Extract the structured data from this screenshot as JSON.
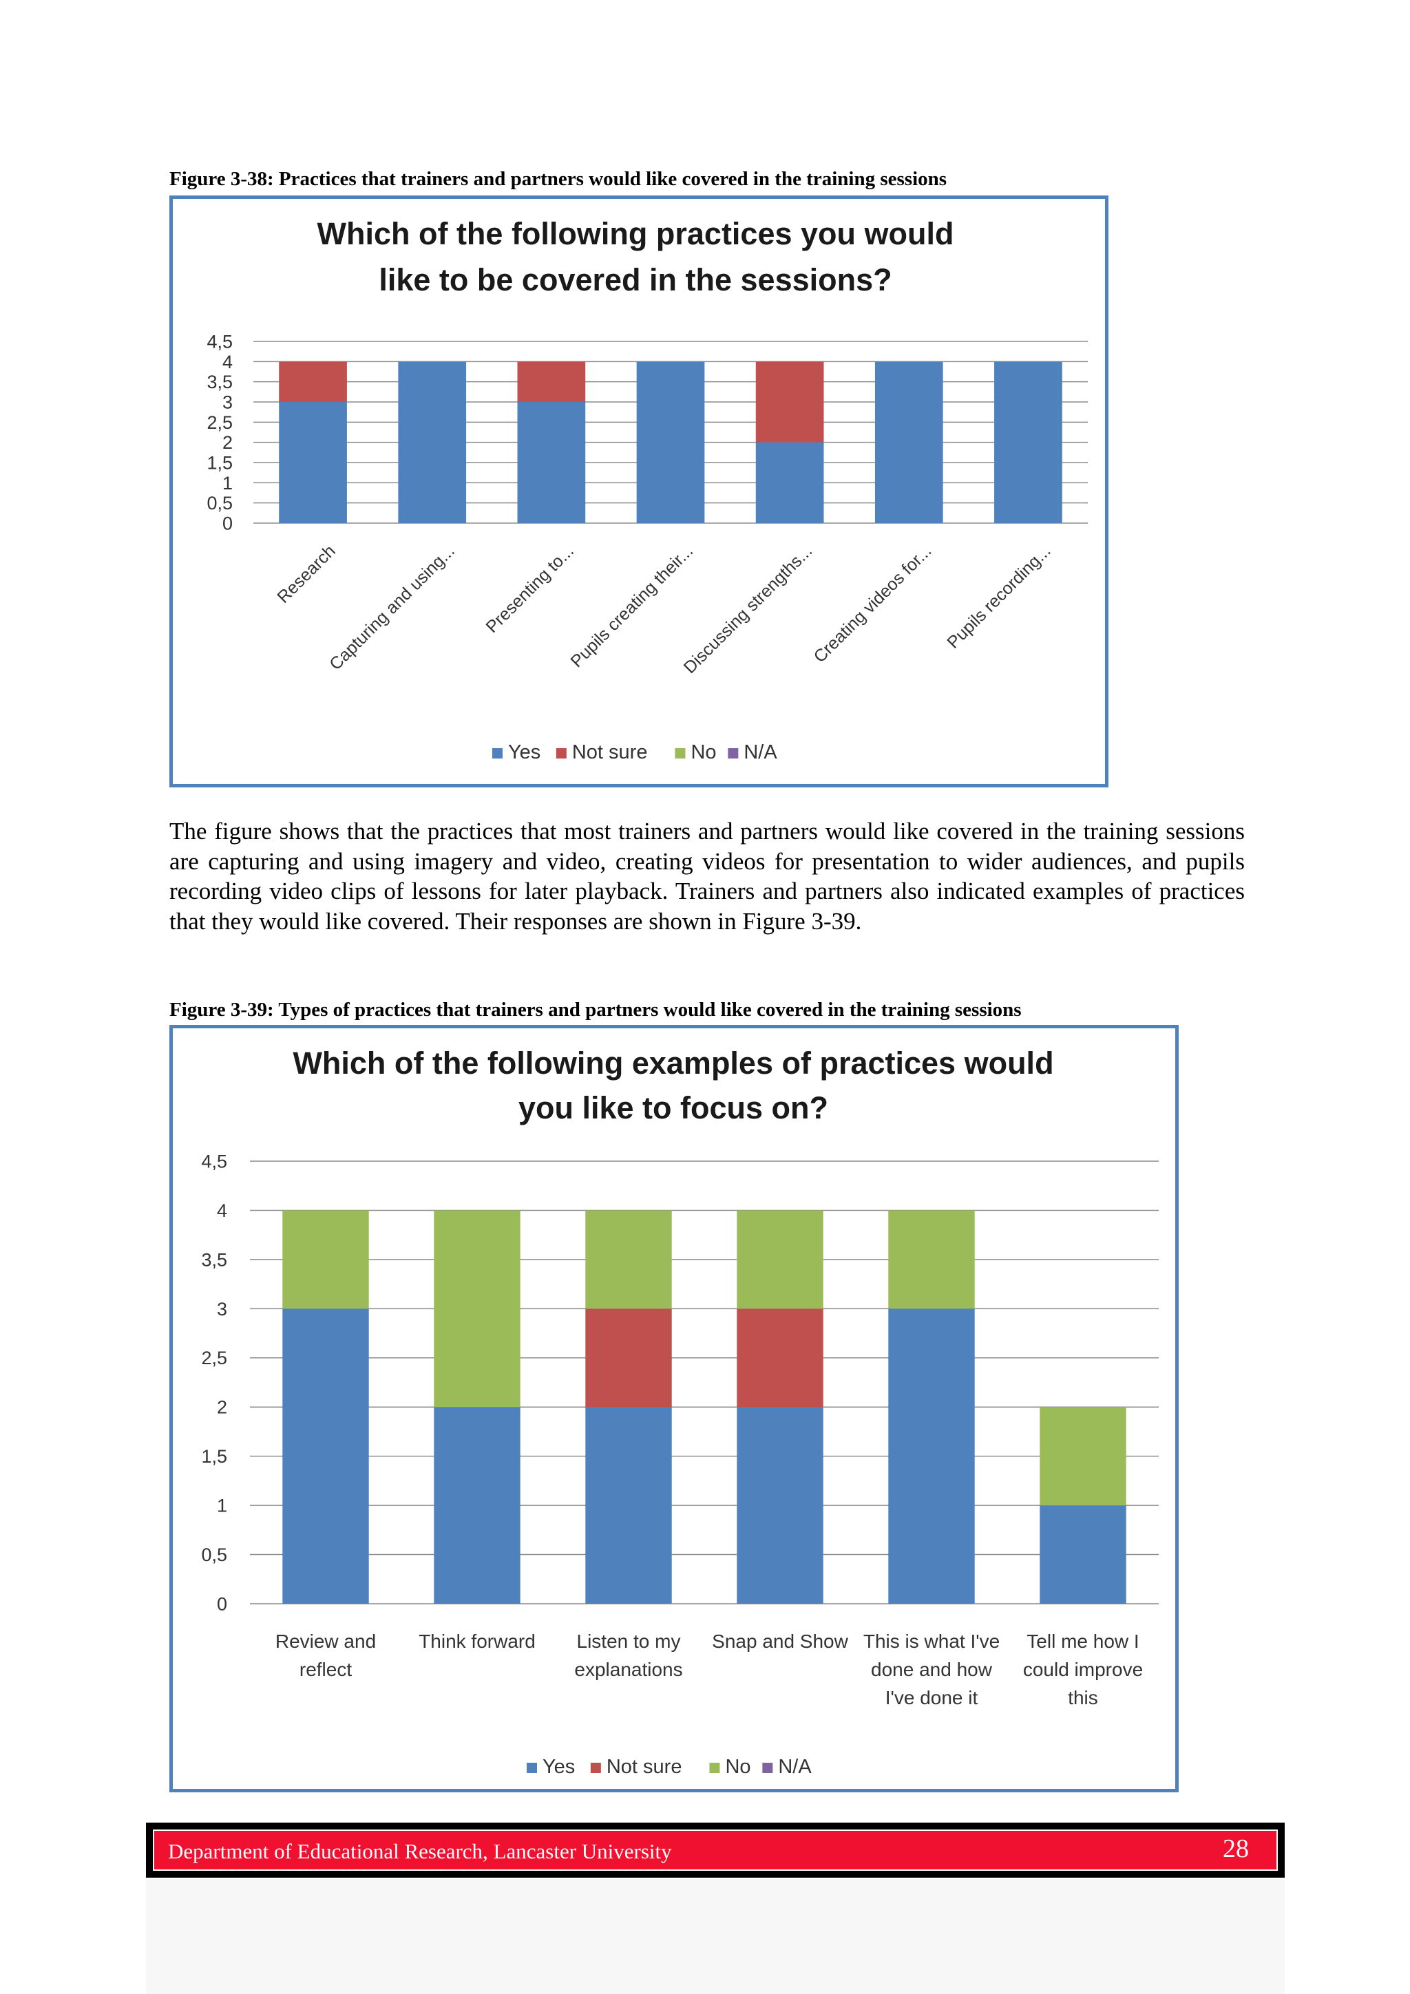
{
  "figures": [
    {
      "caption": "Figure 3-38: Practices that trainers and partners would like covered in the training sessions",
      "chart_data": {
        "type": "bar",
        "stacked": true,
        "title_lines": [
          "Which of the following practices you would",
          "like to be covered in the sessions?"
        ],
        "categories": [
          "Research",
          "Capturing and using...",
          "Presenting to...",
          "Pupils creating their...",
          "Discussing strengths...",
          "Creating videos for...",
          "Pupils recording..."
        ],
        "series": [
          {
            "name": "Yes",
            "color": "#4f81bd",
            "values": [
              3,
              4,
              3,
              4,
              2,
              4,
              4
            ]
          },
          {
            "name": "Not sure",
            "color": "#c0504d",
            "values": [
              1,
              0,
              1,
              0,
              2,
              0,
              0
            ]
          },
          {
            "name": "No",
            "color": "#9bbb59",
            "values": [
              0,
              0,
              0,
              0,
              0,
              0,
              0
            ]
          },
          {
            "name": "N/A",
            "color": "#8064a2",
            "values": [
              0,
              0,
              0,
              0,
              0,
              0,
              0
            ]
          }
        ],
        "ylim": [
          0,
          4.5
        ],
        "y_ticks": [
          "0",
          "0,5",
          "1",
          "1,5",
          "2",
          "2,5",
          "3",
          "3,5",
          "4",
          "4,5"
        ],
        "category_labels_rotated": true,
        "grid": true,
        "legend": "bottom"
      }
    },
    {
      "caption": "Figure 3-39: Types of practices that trainers and partners would like covered in the training sessions",
      "chart_data": {
        "type": "bar",
        "stacked": true,
        "title_lines": [
          "Which of the following examples of practices would",
          "you like to focus on?"
        ],
        "categories": [
          "Review and reflect",
          "Think forward",
          "Listen to my explanations",
          "Snap and Show",
          "This is what I've done and how I've done it",
          "Tell me how I could improve this"
        ],
        "category_label_lines": [
          [
            "Review and",
            "reflect"
          ],
          [
            "Think forward"
          ],
          [
            "Listen to my",
            "explanations"
          ],
          [
            "Snap and Show"
          ],
          [
            "This is what I've",
            "done and how",
            "I've done it"
          ],
          [
            "Tell me how I",
            "could improve",
            "this"
          ]
        ],
        "series": [
          {
            "name": "Yes",
            "color": "#4f81bd",
            "values": [
              3,
              2,
              2,
              2,
              3,
              1
            ]
          },
          {
            "name": "Not sure",
            "color": "#c0504d",
            "values": [
              0,
              0,
              1,
              1,
              0,
              0
            ]
          },
          {
            "name": "No",
            "color": "#9bbb59",
            "values": [
              1,
              2,
              1,
              1,
              1,
              1
            ]
          },
          {
            "name": "N/A",
            "color": "#8064a2",
            "values": [
              0,
              0,
              0,
              0,
              0,
              0
            ]
          }
        ],
        "ylim": [
          0,
          4.5
        ],
        "y_ticks": [
          "0",
          "0,5",
          "1",
          "1,5",
          "2",
          "2,5",
          "3",
          "3,5",
          "4",
          "4,5"
        ],
        "category_labels_rotated": false,
        "grid": true,
        "legend": "bottom"
      }
    }
  ],
  "paragraph": "The figure shows that the practices that most trainers and partners would like covered in the training sessions are capturing and using imagery and video, creating videos for presentation to wider audiences, and pupils recording video clips of lessons for later playback. Trainers and partners also indicated examples of practices that they would like covered. Their responses are shown in Figure 3-39.",
  "footer": {
    "text": "Department of Educational Research, Lancaster University",
    "page_number": "28"
  }
}
